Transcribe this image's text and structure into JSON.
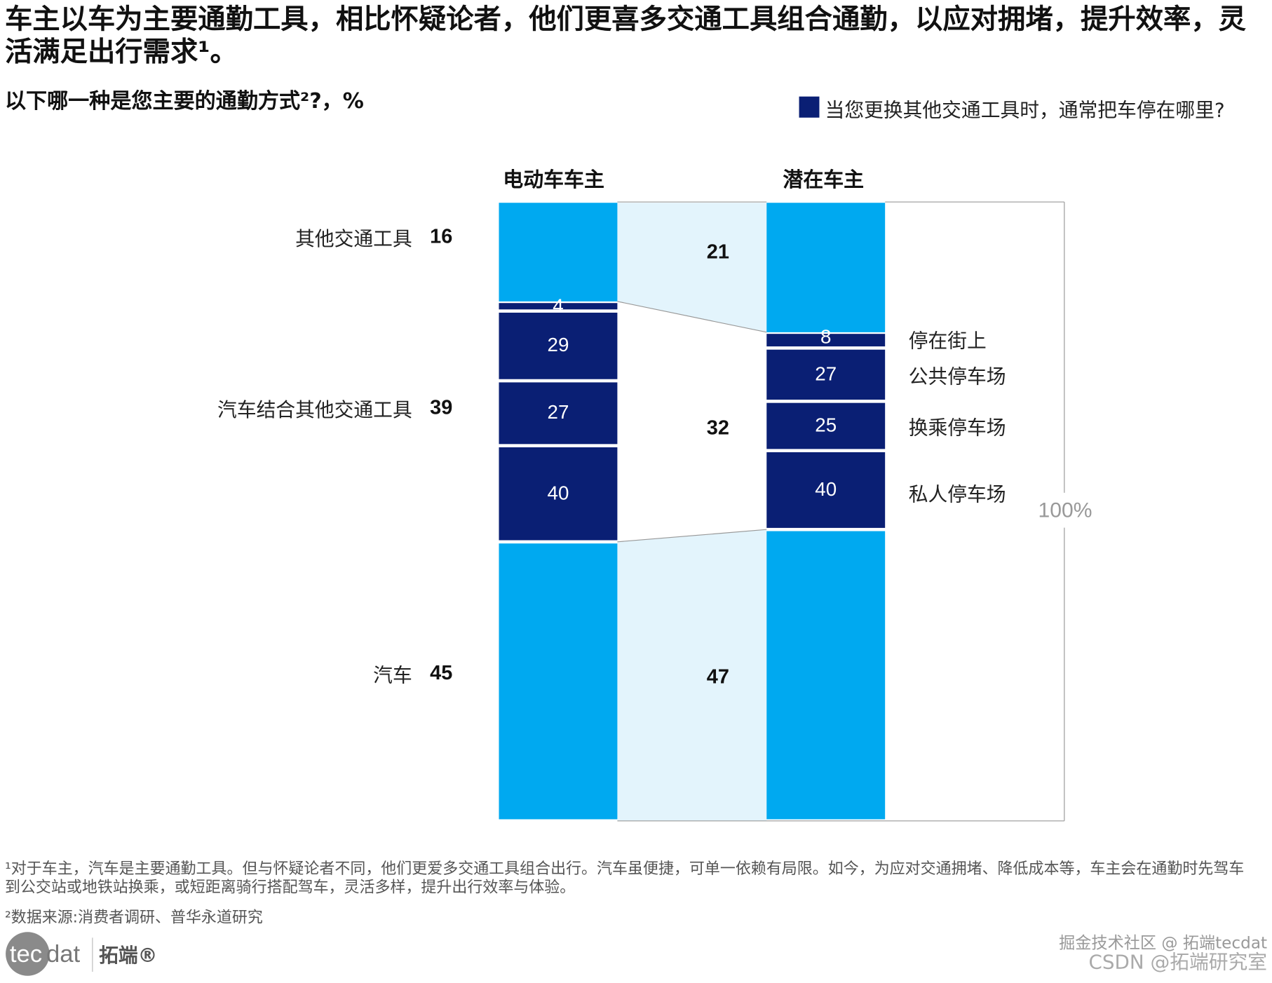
{
  "title": "车主以车为主要通勤工具，相比怀疑论者，他们更喜多交通工具组合通勤，以应对拥堵，提升效率，灵活满足出行需求¹。",
  "subtitle": "以下哪一种是您主要的通勤方式²?，%",
  "legend": {
    "label": "当您更换其他交通工具时，通常把车停在哪里?",
    "color": "#0a1f74"
  },
  "colors": {
    "light": "#00a9f0",
    "dark": "#0a1f74",
    "band": "#e3f4fc",
    "line": "#999999"
  },
  "chart_data": {
    "type": "bar",
    "stacked": true,
    "unit": "%",
    "categories": [
      "电动车车主",
      "潜在车主"
    ],
    "rows": [
      {
        "label": "其他交通工具",
        "ev": 16,
        "potential": 21
      },
      {
        "label": "汽车结合其他交通工具",
        "ev": 39,
        "potential": 32
      },
      {
        "label": "汽车",
        "ev": 45,
        "potential": 47
      }
    ],
    "parking_breakdown": {
      "labels": [
        "停在街上",
        "公共停车场",
        "换乘停车场",
        "私人停车场"
      ],
      "ev": [
        4,
        29,
        27,
        40
      ],
      "potential": [
        8,
        27,
        25,
        40
      ]
    },
    "total_label": "100%"
  },
  "footnotes": [
    "¹对于车主，汽车是主要通勤工具。但与怀疑论者不同，他们更爱多交通工具组合出行。汽车虽便捷，可单一依赖有局限。如今，为应对交通拥堵、降低成本等，车主会在通勤时先驾车到公交站或地铁站换乘，或短距离骑行搭配驾车，灵活多样，提升出行效率与体验。",
    "²数据来源:消费者调研、普华永道研究"
  ],
  "logo": {
    "text": "tecdat",
    "cn": "拓端®"
  },
  "watermark": [
    "掘金技术社区 @ 拓端tecdat",
    "CSDN @拓端研究室"
  ]
}
